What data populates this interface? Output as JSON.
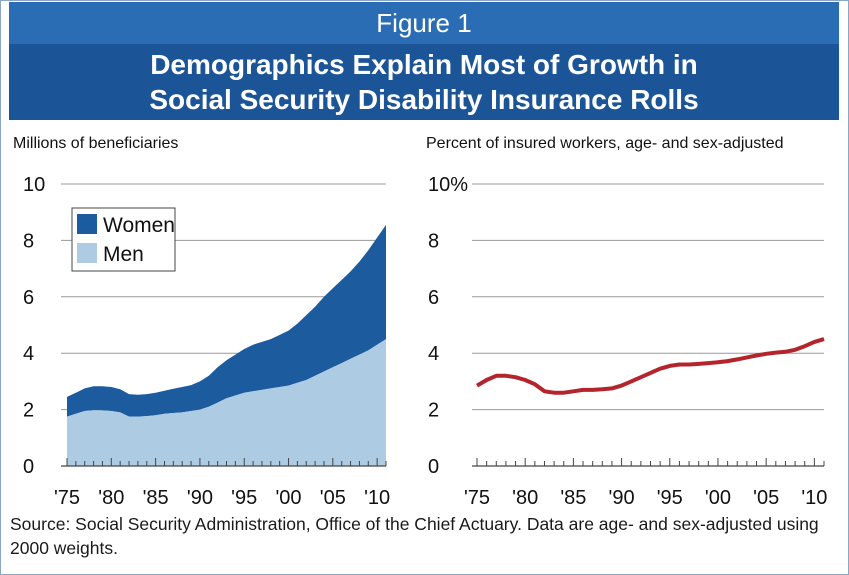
{
  "figure": {
    "number": "Figure 1",
    "title_line1": "Demographics Explain Most of Growth in",
    "title_line2": "Social Security Disability Insurance Rolls",
    "source": "Source: Social Security Administration, Office of the Chief Actuary.  Data are age- and sex-adjusted using 2000 weights."
  },
  "colors": {
    "header_light": "#2a6db5",
    "header_dark": "#1c5597",
    "women": "#1b5b9e",
    "men": "#aecbe4",
    "line": "#b3242b"
  },
  "chart_data": [
    {
      "type": "area",
      "ylabel": "Millions of beneficiaries",
      "ylim": [
        0,
        10
      ],
      "yticks": [
        "0",
        "2",
        "4",
        "6",
        "8",
        "10"
      ],
      "xlim": [
        1975,
        2011
      ],
      "xticks": [
        "'75",
        "'80",
        "'85",
        "'90",
        "'95",
        "'00",
        "'05",
        "'10"
      ],
      "stacked": true,
      "legend_placement": "top-left",
      "grid": true,
      "x": [
        1975,
        1976,
        1977,
        1978,
        1979,
        1980,
        1981,
        1982,
        1983,
        1984,
        1985,
        1986,
        1987,
        1988,
        1989,
        1990,
        1991,
        1992,
        1993,
        1994,
        1995,
        1996,
        1997,
        1998,
        1999,
        2000,
        2001,
        2002,
        2003,
        2004,
        2005,
        2006,
        2007,
        2008,
        2009,
        2010,
        2011
      ],
      "series": [
        {
          "name": "Men",
          "values": [
            1.75,
            1.85,
            1.95,
            1.98,
            1.97,
            1.95,
            1.9,
            1.75,
            1.75,
            1.77,
            1.8,
            1.85,
            1.88,
            1.9,
            1.95,
            2.0,
            2.1,
            2.25,
            2.4,
            2.5,
            2.6,
            2.65,
            2.7,
            2.75,
            2.8,
            2.85,
            2.95,
            3.05,
            3.2,
            3.35,
            3.5,
            3.65,
            3.8,
            3.95,
            4.1,
            4.3,
            4.5
          ]
        },
        {
          "name": "Women",
          "values": [
            0.7,
            0.75,
            0.8,
            0.85,
            0.86,
            0.85,
            0.82,
            0.8,
            0.78,
            0.78,
            0.8,
            0.82,
            0.86,
            0.9,
            0.92,
            1.0,
            1.1,
            1.25,
            1.35,
            1.45,
            1.55,
            1.65,
            1.7,
            1.75,
            1.85,
            1.95,
            2.1,
            2.3,
            2.45,
            2.65,
            2.8,
            2.95,
            3.1,
            3.3,
            3.55,
            3.8,
            4.05
          ]
        }
      ]
    },
    {
      "type": "line",
      "ylabel": "Percent of insured workers, age- and sex-adjusted",
      "ylim": [
        0,
        10
      ],
      "yticks": [
        "0",
        "2",
        "4",
        "6",
        "8",
        "10%"
      ],
      "xlim": [
        1975,
        2011
      ],
      "xticks": [
        "'75",
        "'80",
        "'85",
        "'90",
        "'95",
        "'00",
        "'05",
        "'10"
      ],
      "grid": true,
      "x": [
        1975,
        1976,
        1977,
        1978,
        1979,
        1980,
        1981,
        1982,
        1983,
        1984,
        1985,
        1986,
        1987,
        1988,
        1989,
        1990,
        1991,
        1992,
        1993,
        1994,
        1995,
        1996,
        1997,
        1998,
        1999,
        2000,
        2001,
        2002,
        2003,
        2004,
        2005,
        2006,
        2007,
        2008,
        2009,
        2010,
        2011
      ],
      "series": [
        {
          "values": [
            2.85,
            3.05,
            3.2,
            3.2,
            3.15,
            3.05,
            2.9,
            2.65,
            2.6,
            2.6,
            2.65,
            2.7,
            2.7,
            2.72,
            2.75,
            2.85,
            3.0,
            3.15,
            3.3,
            3.45,
            3.55,
            3.6,
            3.6,
            3.62,
            3.65,
            3.68,
            3.72,
            3.78,
            3.85,
            3.92,
            3.98,
            4.02,
            4.05,
            4.12,
            4.25,
            4.4,
            4.5
          ]
        }
      ]
    }
  ]
}
